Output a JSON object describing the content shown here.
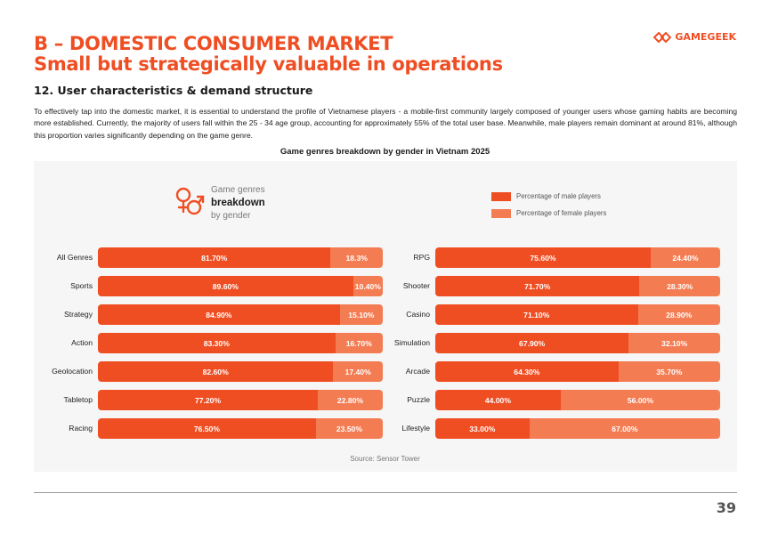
{
  "header": {
    "title_line1": "B –  DOMESTIC CONSUMER MARKET",
    "title_line2": "Small but strategically valuable in operations",
    "logo_text": "GAMEGEEK"
  },
  "section": {
    "title": "12. User characteristics & demand structure",
    "intro": "To effectively tap into the domestic market, it is essential to understand the profile of Vietnamese players - a mobile-first community largely composed of younger users whose gaming habits are becoming more established. Currently, the majority of users fall within the 25 - 34 age group, accounting for approximately 55% of the total user base. Meanwhile, male players remain dominant at around 81%, although this proportion varies significantly depending on the game genre."
  },
  "panel": {
    "label_top": "Game genres",
    "label_bold": "breakdown",
    "label_bottom": "by gender",
    "icon": "gender-male-female-icon"
  },
  "colors": {
    "male": "#ef4e23",
    "female": "#f47c52",
    "accent": "#ef4e23"
  },
  "chart_data": {
    "type": "bar",
    "orientation": "horizontal",
    "stacked": true,
    "title": "Game genres breakdown by gender in Vietnam 2025",
    "legend": [
      {
        "name": "Percentage of male players",
        "color": "#ef4e23"
      },
      {
        "name": "Percentage of female players",
        "color": "#f47c52"
      }
    ],
    "legend_position": "top-right",
    "xlim": [
      0,
      100
    ],
    "groups": [
      {
        "categories": [
          "All Genres",
          "Sports",
          "Strategy",
          "Action",
          "Geolocation",
          "Tabletop",
          "Racing"
        ],
        "male": [
          81.7,
          89.6,
          84.9,
          83.3,
          82.6,
          77.2,
          76.5
        ],
        "female": [
          18.3,
          10.4,
          15.1,
          16.7,
          17.4,
          22.8,
          23.5
        ],
        "male_labels": [
          "81.70%",
          "89.60%",
          "84.90%",
          "83.30%",
          "82.60%",
          "77.20%",
          "76.50%"
        ],
        "female_labels": [
          "18.3%",
          "10.40%",
          "15.10%",
          "16.70%",
          "17.40%",
          "22.80%",
          "23.50%"
        ]
      },
      {
        "categories": [
          "RPG",
          "Shooter",
          "Casino",
          "Simulation",
          "Arcade",
          "Puzzle",
          "Lifestyle"
        ],
        "male": [
          75.6,
          71.7,
          71.1,
          67.9,
          64.3,
          44.0,
          33.0
        ],
        "female": [
          24.4,
          28.3,
          28.9,
          32.1,
          35.7,
          56.0,
          67.0
        ],
        "male_labels": [
          "75.60%",
          "71.70%",
          "71.10%",
          "67.90%",
          "64.30%",
          "44.00%",
          "33.00%"
        ],
        "female_labels": [
          "24.40%",
          "28.30%",
          "28.90%",
          "32.10%",
          "35.70%",
          "56.00%",
          "67.00%"
        ]
      }
    ],
    "source": "Source: Sensor Tower"
  },
  "footer": {
    "page_number": "39"
  }
}
